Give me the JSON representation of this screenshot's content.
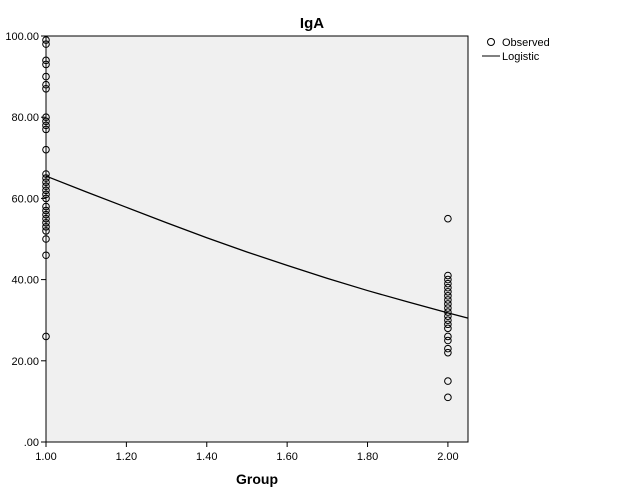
{
  "chart_data": {
    "type": "scatter",
    "title": "IgA",
    "xlabel": "Group",
    "ylabel": "",
    "xlim": [
      1.0,
      2.05
    ],
    "ylim": [
      0,
      100
    ],
    "x_ticks": [
      1.0,
      1.2,
      1.4,
      1.6,
      1.8,
      2.0
    ],
    "x_tick_labels": [
      "1.00",
      "1.20",
      "1.40",
      "1.60",
      "1.80",
      "2.00"
    ],
    "y_ticks": [
      0,
      20,
      40,
      60,
      80,
      100
    ],
    "y_tick_labels": [
      ".00",
      "20.00",
      "40.00",
      "60.00",
      "80.00",
      "100.00"
    ],
    "grid": false,
    "legend_position": "top-right",
    "plot_background": "#f0f0f0",
    "series": [
      {
        "name": "Observed",
        "kind": "scatter",
        "marker": "open-circle",
        "color": "#000000",
        "points": [
          [
            1,
            99
          ],
          [
            1,
            98
          ],
          [
            1,
            94
          ],
          [
            1,
            93
          ],
          [
            1,
            90
          ],
          [
            1,
            88
          ],
          [
            1,
            87
          ],
          [
            1,
            80
          ],
          [
            1,
            79
          ],
          [
            1,
            78
          ],
          [
            1,
            77
          ],
          [
            1,
            72
          ],
          [
            1,
            66
          ],
          [
            1,
            65
          ],
          [
            1,
            64
          ],
          [
            1,
            63
          ],
          [
            1,
            62
          ],
          [
            1,
            61
          ],
          [
            1,
            60
          ],
          [
            1,
            58
          ],
          [
            1,
            57
          ],
          [
            1,
            56
          ],
          [
            1,
            55
          ],
          [
            1,
            54
          ],
          [
            1,
            53
          ],
          [
            1,
            52
          ],
          [
            1,
            50
          ],
          [
            1,
            46
          ],
          [
            1,
            26
          ],
          [
            2,
            55
          ],
          [
            2,
            41
          ],
          [
            2,
            40
          ],
          [
            2,
            39
          ],
          [
            2,
            38
          ],
          [
            2,
            37
          ],
          [
            2,
            36
          ],
          [
            2,
            35
          ],
          [
            2,
            34
          ],
          [
            2,
            33
          ],
          [
            2,
            32
          ],
          [
            2,
            31
          ],
          [
            2,
            30
          ],
          [
            2,
            29
          ],
          [
            2,
            28
          ],
          [
            2,
            26
          ],
          [
            2,
            25
          ],
          [
            2,
            23
          ],
          [
            2,
            22
          ],
          [
            2,
            15
          ],
          [
            2,
            11
          ]
        ]
      },
      {
        "name": "Logistic",
        "kind": "line",
        "color": "#000000",
        "model": "logistic",
        "points": [
          [
            1.0,
            65.5
          ],
          [
            1.1,
            61.6
          ],
          [
            1.2,
            57.8
          ],
          [
            1.3,
            54.0
          ],
          [
            1.4,
            50.3
          ],
          [
            1.5,
            46.8
          ],
          [
            1.6,
            43.5
          ],
          [
            1.7,
            40.3
          ],
          [
            1.8,
            37.3
          ],
          [
            1.9,
            34.5
          ],
          [
            2.0,
            31.8
          ],
          [
            2.05,
            30.5
          ]
        ]
      }
    ]
  }
}
